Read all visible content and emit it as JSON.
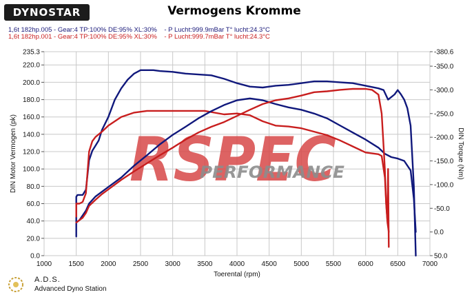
{
  "header": {
    "logo_text": "DYNOSTAR",
    "title": "Vermogens Kromme",
    "runs": [
      "1,6t 182hp.005 - Gear:4 TP:100% DE:95% XL:30%    - P Lucht:999.9mBar T° lucht:24.3°C",
      "1,6t 182hp.001 - Gear:4 TP:100% DE:95% XL:30%    - P Lucht:999.7mBar T° lucht:24.3°C"
    ]
  },
  "footer": {
    "name": "A.D.S.",
    "subtitle": "Advanced Dyno Station"
  },
  "watermark": {
    "line1": "RSPEC",
    "line2": "PERFORMANCE"
  },
  "colors": {
    "blue": "#10187c",
    "red": "#c81e1e",
    "watermark": "#d74848",
    "grid": "#c8c8c8"
  },
  "chart_data": {
    "type": "line",
    "title": "Vermogens Kromme",
    "xlabel": "Toerental (rpm)",
    "ylabel": "DIN Motor Vermogen (pk)",
    "y2label": "DIN Torque (Nm)",
    "xlim": [
      1000,
      7000
    ],
    "ylim": [
      0,
      235.3
    ],
    "y2lim": [
      50,
      -380.6
    ],
    "xticks": [
      1000,
      1500,
      2000,
      2500,
      3000,
      3500,
      4000,
      4500,
      5000,
      5500,
      6000,
      6500,
      7000
    ],
    "yticks": [
      "0.0",
      "20.0",
      "40.0",
      "60.0",
      "80.0",
      "100.0",
      "120.0",
      "140.0",
      "160.0",
      "180.0",
      "200.0",
      "220.0",
      "235.3"
    ],
    "y2ticks": [
      "-380.6",
      "-350.0",
      "-300.0",
      "-250.0",
      "-200.0",
      "-150.0",
      "-100.0",
      "-50.0",
      "0.0",
      "50.0"
    ],
    "grid": true,
    "legend": "none",
    "series": [
      {
        "id": "power_blue",
        "axis": "left",
        "color": "#10187c",
        "x": [
          1500,
          1500,
          1520,
          1600,
          1650,
          1700,
          1750,
          1800,
          1850,
          1900,
          2000,
          2100,
          2200,
          2300,
          2400,
          2500,
          2600,
          2700,
          2800,
          3000,
          3200,
          3400,
          3600,
          3800,
          4000,
          4200,
          4400,
          4600,
          4800,
          5000,
          5200,
          5400,
          5600,
          5800,
          6000,
          6200,
          6280,
          6350,
          6400,
          6450,
          6500,
          6550,
          6600,
          6650,
          6700,
          6750,
          6780
        ],
        "y": [
          22,
          68,
          70,
          70,
          76,
          110,
          121,
          127,
          133,
          145,
          160,
          180,
          193,
          203,
          210,
          214,
          214,
          214,
          213,
          212,
          210,
          209,
          208,
          204,
          199,
          195,
          194,
          196,
          197,
          199,
          201,
          201,
          200,
          199,
          196,
          193,
          191,
          180,
          183,
          186,
          191,
          186,
          180,
          170,
          150,
          80,
          0
        ]
      },
      {
        "id": "power_red",
        "axis": "left",
        "color": "#c81e1e",
        "x": [
          1500,
          1500,
          1550,
          1600,
          1650,
          1700,
          1750,
          1800,
          1900,
          2000,
          2200,
          2400,
          2600,
          3000,
          3500,
          3800,
          4000,
          4200,
          4400,
          4600,
          4800,
          5000,
          5200,
          5400,
          5600,
          5800,
          6000,
          6100,
          6200,
          6250,
          6300,
          6320,
          6340,
          6350,
          6360
        ],
        "y": [
          45,
          60,
          60,
          62,
          72,
          120,
          132,
          137,
          143,
          150,
          160,
          165,
          167,
          167,
          167,
          163,
          164,
          162,
          155,
          150,
          149,
          147,
          143,
          139,
          133,
          126,
          119,
          118,
          117,
          115,
          90,
          60,
          40,
          100,
          10
        ]
      },
      {
        "id": "torque_blue",
        "axis": "right",
        "color": "#10187c",
        "x": [
          1500,
          1550,
          1600,
          1650,
          1700,
          1800,
          1900,
          2000,
          2200,
          2400,
          2600,
          2800,
          3000,
          3200,
          3400,
          3600,
          3800,
          4000,
          4200,
          4400,
          4600,
          4800,
          5000,
          5200,
          5400,
          5600,
          5800,
          6000,
          6200,
          6300,
          6400,
          6500,
          6600,
          6700,
          6750,
          6780
        ],
        "y": [
          -20,
          -25,
          -35,
          -45,
          -60,
          -75,
          -85,
          -95,
          -115,
          -140,
          -162,
          -185,
          -205,
          -222,
          -240,
          -255,
          -268,
          -278,
          -282,
          -278,
          -270,
          -263,
          -258,
          -250,
          -240,
          -225,
          -210,
          -195,
          -178,
          -165,
          -158,
          -155,
          -150,
          -130,
          -70,
          0
        ]
      },
      {
        "id": "torque_red",
        "axis": "right",
        "color": "#c81e1e",
        "x": [
          1500,
          1550,
          1600,
          1650,
          1700,
          1800,
          1900,
          2000,
          2200,
          2400,
          2600,
          2800,
          3000,
          3200,
          3400,
          3600,
          3800,
          4000,
          4200,
          4400,
          4600,
          4800,
          5000,
          5200,
          5400,
          5600,
          5800,
          6000,
          6100,
          6200,
          6250,
          6280,
          6300,
          6320,
          6340,
          6360
        ],
        "y": [
          -20,
          -25,
          -30,
          -40,
          -55,
          -68,
          -80,
          -90,
          -110,
          -128,
          -145,
          -162,
          -178,
          -195,
          -210,
          -222,
          -232,
          -245,
          -258,
          -270,
          -278,
          -282,
          -288,
          -295,
          -297,
          -300,
          -302,
          -302,
          -300,
          -290,
          -250,
          -180,
          -130,
          -60,
          -20,
          0
        ]
      }
    ]
  }
}
